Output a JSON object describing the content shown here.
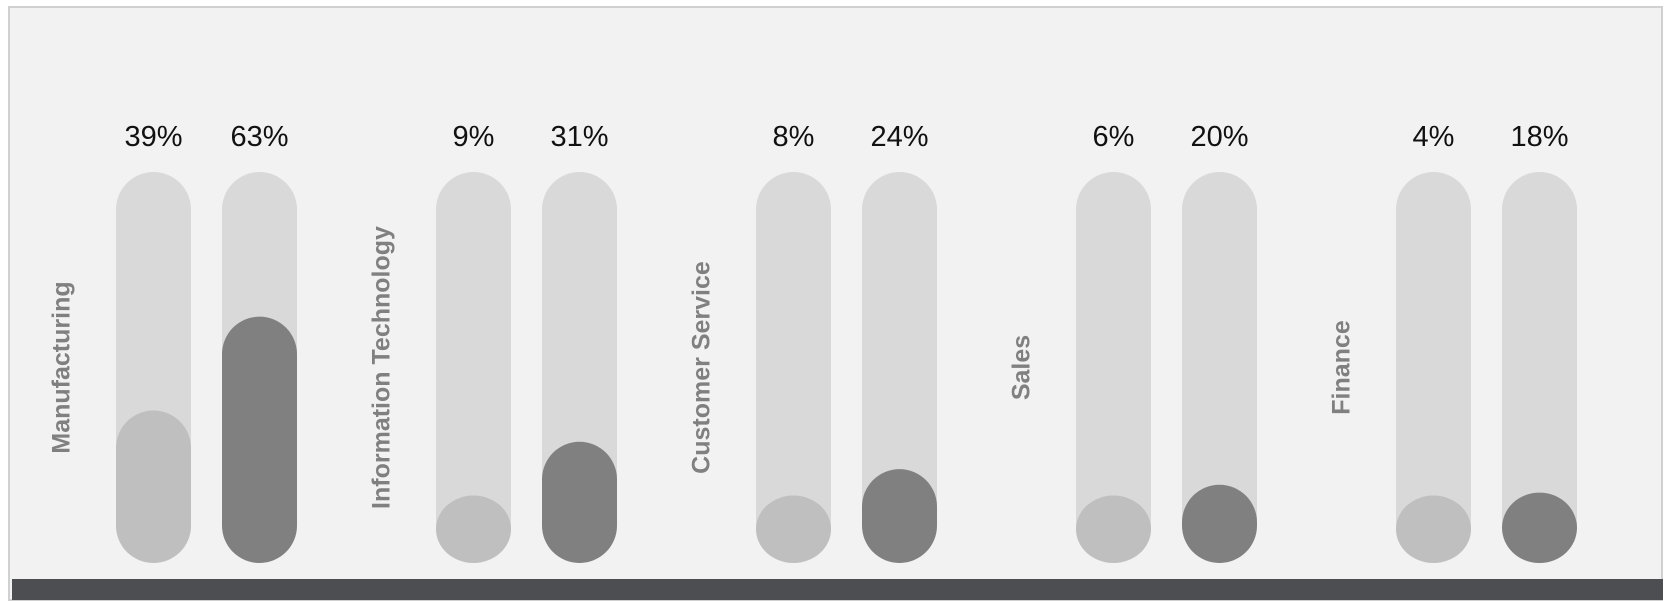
{
  "chart_data": {
    "type": "bar",
    "categories": [
      "Manufacturing",
      "Information Technology",
      "Customer Service",
      "Sales",
      "Finance"
    ],
    "series": [
      {
        "values": [
          39,
          9,
          8,
          6,
          4
        ]
      },
      {
        "values": [
          63,
          31,
          24,
          20,
          18
        ]
      }
    ],
    "value_labels": [
      [
        "39%",
        "63%"
      ],
      [
        "9%",
        "31%"
      ],
      [
        "8%",
        "24%"
      ],
      [
        "6%",
        "20%"
      ],
      [
        "4%",
        "18%"
      ]
    ],
    "ylim": [
      0,
      100
    ],
    "legend": "none",
    "grid": false
  },
  "colors": {
    "frame_background": "#f2f2f2",
    "track": "#d9d9d9",
    "series_1": "#bfbfbf",
    "series_2": "#808080",
    "category_label": "#808080",
    "value_label": "#111111",
    "footer_bar": "#4d4e51"
  }
}
